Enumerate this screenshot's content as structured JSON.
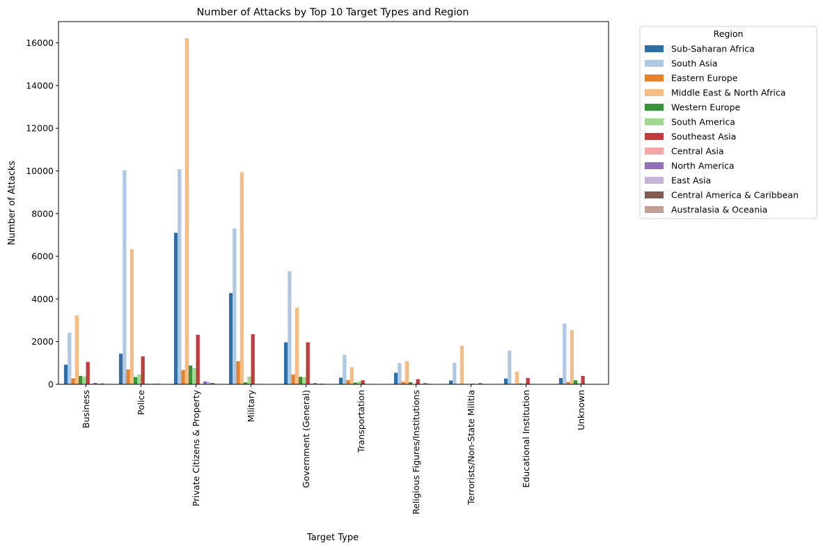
{
  "chart_data": {
    "type": "bar",
    "title": "Number of Attacks by Top 10 Target Types and Region",
    "xlabel": "Target Type",
    "ylabel": "Number of Attacks",
    "ylim": [
      0,
      17000
    ],
    "yticks": [
      0,
      2000,
      4000,
      6000,
      8000,
      10000,
      12000,
      14000,
      16000
    ],
    "grid": false,
    "legend_title": "Region",
    "legend_position": "outside-top-right",
    "categories": [
      "Business",
      "Police",
      "Private Citizens & Property",
      "Military",
      "Government (General)",
      "Transportation",
      "Religious Figures/Institutions",
      "Terrorists/Non-State Militia",
      "Educational Institution",
      "Unknown"
    ],
    "series": [
      {
        "name": "Sub-Saharan Africa",
        "color": "#2e6fa5",
        "values": [
          920,
          1430,
          7100,
          4280,
          1970,
          310,
          540,
          180,
          270,
          290
        ]
      },
      {
        "name": "South Asia",
        "color": "#b1c8e3",
        "values": [
          2420,
          10030,
          10080,
          7300,
          5300,
          1380,
          990,
          1010,
          1580,
          2850
        ]
      },
      {
        "name": "Eastern Europe",
        "color": "#e6812d",
        "values": [
          280,
          700,
          670,
          1080,
          460,
          200,
          120,
          20,
          20,
          110
        ]
      },
      {
        "name": "Middle East & North Africa",
        "color": "#f5bd85",
        "values": [
          3230,
          6330,
          16220,
          9940,
          3590,
          800,
          1090,
          1810,
          590,
          2540
        ]
      },
      {
        "name": "Western Europe",
        "color": "#3a923a",
        "values": [
          390,
          340,
          880,
          90,
          350,
          80,
          100,
          10,
          40,
          190
        ]
      },
      {
        "name": "South America",
        "color": "#9fd88f",
        "values": [
          360,
          460,
          760,
          360,
          330,
          130,
          20,
          20,
          40,
          60
        ]
      },
      {
        "name": "Southeast Asia",
        "color": "#c03c3c",
        "values": [
          1050,
          1310,
          2320,
          2350,
          1970,
          190,
          240,
          30,
          300,
          390
        ]
      },
      {
        "name": "Central Asia",
        "color": "#f4a6a3",
        "values": [
          20,
          40,
          20,
          20,
          30,
          10,
          10,
          0,
          10,
          20
        ]
      },
      {
        "name": "North America",
        "color": "#9170b7",
        "values": [
          70,
          20,
          140,
          10,
          60,
          20,
          60,
          60,
          10,
          10
        ]
      },
      {
        "name": "East Asia",
        "color": "#c6b3d8",
        "values": [
          30,
          30,
          110,
          10,
          20,
          10,
          30,
          10,
          10,
          20
        ]
      },
      {
        "name": "Central America & Caribbean",
        "color": "#845b53",
        "values": [
          40,
          30,
          60,
          10,
          30,
          10,
          10,
          10,
          10,
          10
        ]
      },
      {
        "name": "Australasia & Oceania",
        "color": "#c19f98",
        "values": [
          10,
          10,
          20,
          0,
          10,
          0,
          10,
          0,
          10,
          0
        ]
      }
    ]
  }
}
